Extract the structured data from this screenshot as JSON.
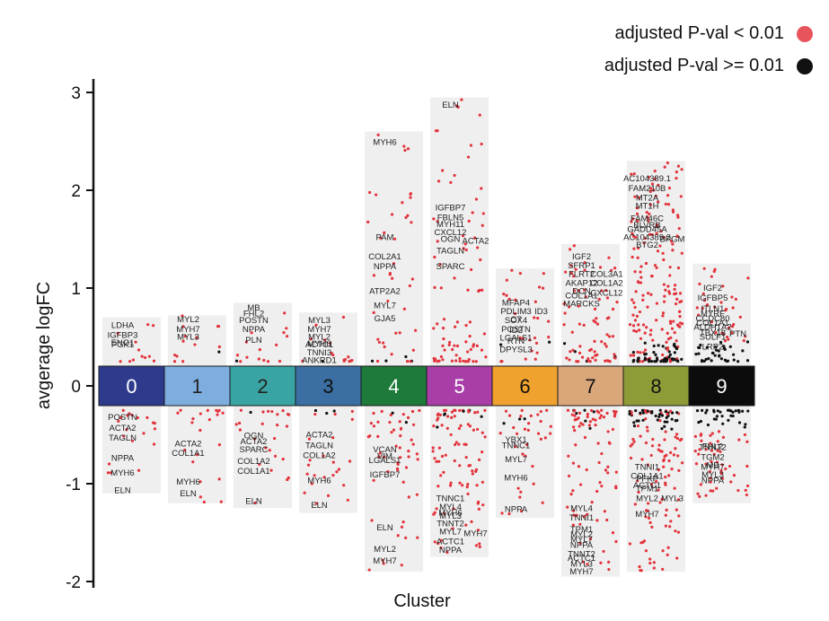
{
  "chart_data": {
    "type": "scatter",
    "xlabel": "Cluster",
    "ylabel": "avgerage logFC",
    "ylim": [
      -2,
      3
    ],
    "yticks": [
      3,
      2,
      1,
      0,
      -1,
      -2
    ],
    "legend": [
      {
        "label": "adjusted P-val < 0.01",
        "color": "#e8545c"
      },
      {
        "label": "adjusted  P-val >= 0.01",
        "color": "#111111"
      }
    ],
    "legend_position": "top-right",
    "clusters": [
      {
        "id": "0",
        "color": "#2e3a8c",
        "text_color": "#ffffff",
        "range": [
          -1.1,
          0.7
        ],
        "n_pos": 12,
        "n_neg": 20,
        "black": 0.05,
        "labels": [
          [
            "LDHA",
            0.62
          ],
          [
            "IGFBP3",
            0.52
          ],
          [
            "PGK1",
            0.42
          ],
          [
            "ENO1",
            0.44
          ],
          [
            "POSTN",
            -0.32
          ],
          [
            "ACTA2",
            -0.43
          ],
          [
            "TAGLN",
            -0.53
          ],
          [
            "NPPA",
            -0.74
          ],
          [
            "MYH6",
            -0.89
          ],
          [
            "ELN",
            -1.07
          ]
        ]
      },
      {
        "id": "1",
        "color": "#7eaee0",
        "text_color": "#222222",
        "range": [
          -1.2,
          0.72
        ],
        "n_pos": 14,
        "n_neg": 22,
        "black": 0.05,
        "labels": [
          [
            "MYL2",
            0.68
          ],
          [
            "MYH7",
            0.58
          ],
          [
            "MYL3",
            0.5
          ],
          [
            "ACTA2",
            -0.59
          ],
          [
            "COL1A1",
            -0.69
          ],
          [
            "MYH6",
            -0.98
          ],
          [
            "ELN",
            -1.1
          ]
        ]
      },
      {
        "id": "2",
        "color": "#3aa3a3",
        "text_color": "#222222",
        "range": [
          -1.25,
          0.85
        ],
        "n_pos": 16,
        "n_neg": 26,
        "black": 0.06,
        "labels": [
          [
            "MB",
            0.8
          ],
          [
            "FHL2",
            0.74
          ],
          [
            "POSTN",
            0.67
          ],
          [
            "NPPA",
            0.58
          ],
          [
            "PLN",
            0.47
          ],
          [
            "OGN",
            -0.51
          ],
          [
            "ACTA2",
            -0.57
          ],
          [
            "SPARC",
            -0.65
          ],
          [
            "COL1A2",
            -0.77
          ],
          [
            "COL1A1",
            -0.87
          ],
          [
            "ELN",
            -1.18
          ]
        ]
      },
      {
        "id": "3",
        "color": "#3b6fa3",
        "text_color": "#111111",
        "range": [
          -1.3,
          0.75
        ],
        "n_pos": 16,
        "n_neg": 26,
        "black": 0.06,
        "labels": [
          [
            "MYL3",
            0.67
          ],
          [
            "MYH7",
            0.58
          ],
          [
            "MYL2",
            0.5
          ],
          [
            "MYH6",
            0.43
          ],
          [
            "ACTC1",
            0.42
          ],
          [
            "TNNI3",
            0.34
          ],
          [
            "ANKRD1",
            0.26
          ],
          [
            "ACTA2",
            -0.5
          ],
          [
            "TAGLN",
            -0.61
          ],
          [
            "COL1A2",
            -0.71
          ],
          [
            "MYH6",
            -0.97
          ],
          [
            "ELN",
            -1.22
          ]
        ]
      },
      {
        "id": "4",
        "color": "#1e7a3a",
        "text_color": "#ffffff",
        "range": [
          -1.9,
          2.6
        ],
        "n_pos": 44,
        "n_neg": 55,
        "black": 0.04,
        "labels": [
          [
            "MYH6",
            2.49
          ],
          [
            "PAM",
            1.52
          ],
          [
            "COL2A1",
            1.32
          ],
          [
            "NPPA",
            1.22
          ],
          [
            "ATP2A2",
            0.97
          ],
          [
            "MYL7",
            0.82
          ],
          [
            "GJA5",
            0.69
          ],
          [
            "VCAN",
            -0.65
          ],
          [
            "LGALS1",
            -0.76
          ],
          [
            "VIM",
            -0.72
          ],
          [
            "IGFBP7",
            -0.91
          ],
          [
            "ELN",
            -1.45
          ],
          [
            "MYL2",
            -1.67
          ],
          [
            "MYH7",
            -1.79
          ]
        ]
      },
      {
        "id": "5",
        "color": "#a93ea8",
        "text_color": "#ffffff",
        "range": [
          -1.75,
          2.95
        ],
        "n_pos": 85,
        "n_neg": 95,
        "black": 0.03,
        "labels": [
          [
            "ELN",
            2.87
          ],
          [
            "IGFBP7",
            1.82
          ],
          [
            "FBLN5",
            1.72
          ],
          [
            "MYH11",
            1.65
          ],
          [
            "CXCL12",
            1.57
          ],
          [
            "OGN",
            1.5
          ],
          [
            "ACTA2",
            1.48
          ],
          [
            "TAGLN",
            1.38
          ],
          [
            "SPARC",
            1.22
          ],
          [
            "TNNC1",
            -1.15
          ],
          [
            "MYL4",
            -1.24
          ],
          [
            "MYH6",
            -1.3
          ],
          [
            "MYL3",
            -1.33
          ],
          [
            "TNNT2",
            -1.41
          ],
          [
            "MYL7",
            -1.49
          ],
          [
            "MYH7",
            -1.51
          ],
          [
            "ACTC1",
            -1.59
          ],
          [
            "NPPA",
            -1.68
          ]
        ]
      },
      {
        "id": "6",
        "color": "#f0a22e",
        "text_color": "#111111",
        "range": [
          -1.35,
          1.2
        ],
        "n_pos": 30,
        "n_neg": 36,
        "black": 0.1,
        "labels": [
          [
            "MFAP4",
            0.85
          ],
          [
            "PDLIM3",
            0.76
          ],
          [
            "ID3",
            0.76
          ],
          [
            "C7",
            0.68
          ],
          [
            "SOX4",
            0.67
          ],
          [
            "POSTN",
            0.58
          ],
          [
            "ID2",
            0.57
          ],
          [
            "LGALS1",
            0.49
          ],
          [
            "RTN",
            0.46
          ],
          [
            "DPYSL3",
            0.37
          ],
          [
            "TNNC1",
            -0.61
          ],
          [
            "YBX1",
            -0.55
          ],
          [
            "MYL7",
            -0.75
          ],
          [
            "MYH6",
            -0.94
          ],
          [
            "NPPA",
            -1.26
          ]
        ]
      },
      {
        "id": "7",
        "color": "#d9a77a",
        "text_color": "#111111",
        "range": [
          -1.95,
          1.45
        ],
        "n_pos": 75,
        "n_neg": 90,
        "black": 0.05,
        "labels": [
          [
            "IGF2",
            1.32
          ],
          [
            "SFRP1",
            1.23
          ],
          [
            "FLRT2",
            1.14
          ],
          [
            "COL3A1",
            1.14
          ],
          [
            "AKAP12",
            1.05
          ],
          [
            "COL1A2",
            1.05
          ],
          [
            "DCN",
            0.97
          ],
          [
            "CXCL12",
            0.95
          ],
          [
            "COL1A1",
            0.92
          ],
          [
            "MARCKS",
            0.84
          ],
          [
            "MYL4",
            -1.25
          ],
          [
            "TNNI1",
            -1.35
          ],
          [
            "TPM1",
            -1.47
          ],
          [
            "MYL2",
            -1.52
          ],
          [
            "MYL7",
            -1.57
          ],
          [
            "NPPA",
            -1.63
          ],
          [
            "TNNT2",
            -1.72
          ],
          [
            "ACTC1",
            -1.76
          ],
          [
            "MYL3",
            -1.82
          ],
          [
            "MYH7",
            -1.9
          ]
        ]
      },
      {
        "id": "8",
        "color": "#8f9b36",
        "text_color": "#111111",
        "range": [
          -1.9,
          2.3
        ],
        "n_pos": 220,
        "n_neg": 140,
        "black": 0.3,
        "labels": [
          [
            "AC104389.1",
            2.12
          ],
          [
            "FAM210B",
            2.02
          ],
          [
            "MT2A",
            1.92
          ],
          [
            "MT1H",
            1.84
          ],
          [
            "FAM46C",
            1.71
          ],
          [
            "BLVRB",
            1.64
          ],
          [
            "GADD45A",
            1.6
          ],
          [
            "AC104389.2",
            1.52
          ],
          [
            "BPGM",
            1.5
          ],
          [
            "BTG2",
            1.44
          ],
          [
            "TNNI1",
            -0.83
          ],
          [
            "COL1A1",
            -0.92
          ],
          [
            "PFKP",
            -0.95
          ],
          [
            "ACTC1",
            -1.02
          ],
          [
            "TPM1",
            -1.05
          ],
          [
            "MYL2",
            -1.15
          ],
          [
            "MYL3",
            -1.15
          ],
          [
            "MYH7",
            -1.31
          ]
        ]
      },
      {
        "id": "9",
        "color": "#0c0c0c",
        "text_color": "#ffffff",
        "range": [
          -1.2,
          1.25
        ],
        "n_pos": 70,
        "n_neg": 80,
        "black": 0.75,
        "labels": [
          [
            "IGF2",
            1.0
          ],
          [
            "IGFBP5",
            0.9
          ],
          [
            "ITLN1",
            0.79
          ],
          [
            "MYRF",
            0.74
          ],
          [
            "CCDC80",
            0.69
          ],
          [
            "COL1A1",
            0.64
          ],
          [
            "ALDH1A2",
            0.6
          ],
          [
            "TBX18",
            0.54
          ],
          [
            "PTN",
            0.53
          ],
          [
            "SULF1",
            0.5
          ],
          [
            "LRP2",
            0.4
          ],
          [
            "FHL2",
            -0.62
          ],
          [
            "TNNT2",
            -0.63
          ],
          [
            "TGM2",
            -0.73
          ],
          [
            "MB",
            -0.81
          ],
          [
            "MYH7",
            -0.83
          ],
          [
            "MYL3",
            -0.91
          ],
          [
            "NPPA",
            -0.97
          ]
        ]
      }
    ]
  }
}
